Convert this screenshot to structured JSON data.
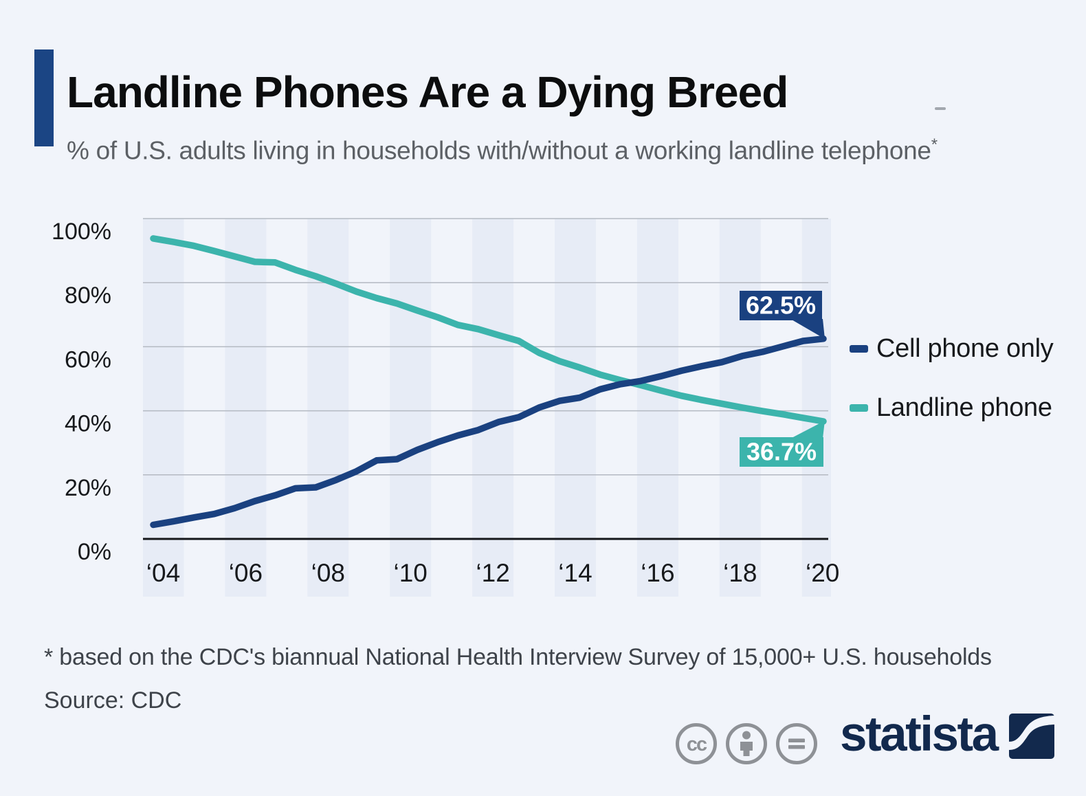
{
  "header": {
    "title": "Landline Phones Are a Dying Breed",
    "subtitle": "% of U.S. adults living in households with/without a working landline telephone",
    "footnote_marker": "*"
  },
  "chart_data": {
    "type": "line",
    "title": "Landline Phones Are a Dying Breed",
    "xlabel": "",
    "ylabel": "% of U.S. adults",
    "ylim": [
      0,
      100
    ],
    "grid": "horizontal",
    "legend_position": "right",
    "background_bands": "vertical band on each even-numbered year",
    "x": [
      2004,
      2004.5,
      2005,
      2005.5,
      2006,
      2006.5,
      2007,
      2007.5,
      2008,
      2008.5,
      2009,
      2009.5,
      2010,
      2010.5,
      2011,
      2011.5,
      2012,
      2012.5,
      2013,
      2013.5,
      2014,
      2014.5,
      2015,
      2015.5,
      2016,
      2016.5,
      2017,
      2017.5,
      2018,
      2018.5,
      2019,
      2019.5,
      2020,
      2020.5
    ],
    "x_tick_labels": [
      "‘04",
      "‘06",
      "‘08",
      "‘10",
      "‘12",
      "‘14",
      "‘16",
      "‘18",
      "‘20"
    ],
    "y_tick_labels": [
      "0%",
      "20%",
      "40%",
      "60%",
      "80%",
      "100%"
    ],
    "band_color": "#e7ecf6",
    "series": [
      {
        "name": "Cell phone only",
        "color": "#1a4180",
        "values": [
          4.4,
          5.5,
          6.7,
          7.8,
          9.6,
          11.8,
          13.6,
          15.8,
          16.1,
          18.4,
          21.1,
          24.5,
          24.9,
          27.8,
          30.2,
          32.3,
          34.0,
          36.5,
          38.0,
          41.0,
          43.1,
          44.1,
          46.7,
          48.3,
          49.3,
          50.8,
          52.5,
          53.9,
          55.2,
          57.1,
          58.4,
          60.1,
          61.8,
          62.5
        ]
      },
      {
        "name": "Landline phone",
        "color": "#3cb4ac",
        "values": [
          93.8,
          92.7,
          91.5,
          89.9,
          88.2,
          86.5,
          86.3,
          84.0,
          82.0,
          79.7,
          77.2,
          75.2,
          73.5,
          71.3,
          69.2,
          66.8,
          65.5,
          63.6,
          61.8,
          58.1,
          55.5,
          53.5,
          51.3,
          49.6,
          48.0,
          46.3,
          44.7,
          43.4,
          42.2,
          41.0,
          39.9,
          38.9,
          37.8,
          36.7
        ]
      }
    ],
    "annotations": [
      {
        "series": "Cell phone only",
        "text": "62.5%"
      },
      {
        "series": "Landline phone",
        "text": "36.7%"
      }
    ]
  },
  "footer": {
    "footnote": "* based on the CDC's biannual National Health Interview Survey of 15,000+ U.S. households",
    "source": "Source: CDC",
    "license_icons": [
      "cc",
      "attribution",
      "no-derivatives"
    ],
    "brand": "statista"
  }
}
